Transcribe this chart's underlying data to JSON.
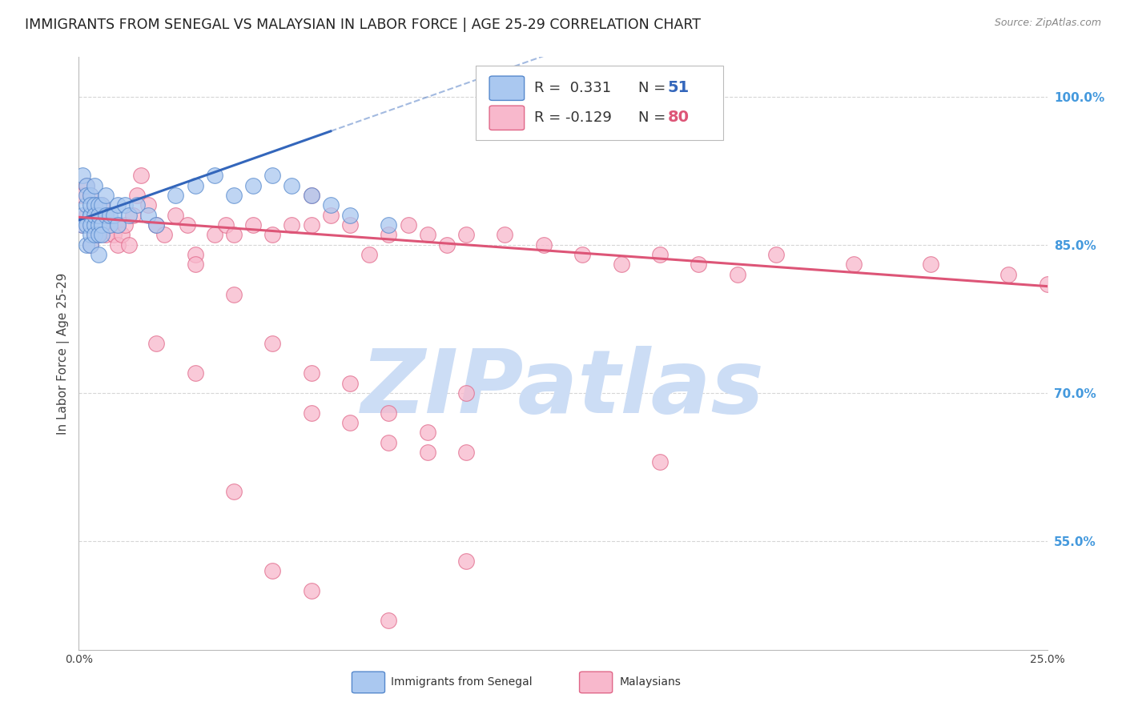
{
  "title": "IMMIGRANTS FROM SENEGAL VS MALAYSIAN IN LABOR FORCE | AGE 25-29 CORRELATION CHART",
  "source": "Source: ZipAtlas.com",
  "ylabel": "In Labor Force | Age 25-29",
  "xlim": [
    0.0,
    0.25
  ],
  "ylim": [
    0.44,
    1.04
  ],
  "xticks": [
    0.0,
    0.05,
    0.1,
    0.15,
    0.2,
    0.25
  ],
  "xticklabels": [
    "0.0%",
    "",
    "",
    "",
    "",
    "25.0%"
  ],
  "yticks_right": [
    1.0,
    0.85,
    0.7,
    0.55
  ],
  "ytick_labels_right": [
    "100.0%",
    "85.0%",
    "70.0%",
    "55.0%"
  ],
  "senegal_R": 0.331,
  "senegal_N": 51,
  "malaysian_R": -0.129,
  "malaysian_N": 80,
  "senegal_color": "#aac8f0",
  "senegal_edge_color": "#5588cc",
  "malaysian_color": "#f8b8cc",
  "malaysian_edge_color": "#e06688",
  "senegal_line_color": "#3366bb",
  "malaysian_line_color": "#dd5577",
  "background_color": "#ffffff",
  "grid_color": "#cccccc",
  "watermark": "ZIPatlas",
  "watermark_color": "#ccddf5",
  "right_tick_color": "#4499dd",
  "senegal_x": [
    0.001,
    0.001,
    0.001,
    0.002,
    0.002,
    0.002,
    0.002,
    0.002,
    0.003,
    0.003,
    0.003,
    0.003,
    0.003,
    0.003,
    0.003,
    0.004,
    0.004,
    0.004,
    0.004,
    0.004,
    0.005,
    0.005,
    0.005,
    0.005,
    0.005,
    0.006,
    0.006,
    0.006,
    0.007,
    0.007,
    0.008,
    0.008,
    0.009,
    0.01,
    0.01,
    0.012,
    0.013,
    0.015,
    0.018,
    0.02,
    0.025,
    0.03,
    0.035,
    0.04,
    0.045,
    0.05,
    0.055,
    0.06,
    0.065,
    0.07,
    0.08
  ],
  "senegal_y": [
    0.88,
    0.92,
    0.87,
    0.89,
    0.91,
    0.87,
    0.9,
    0.85,
    0.88,
    0.9,
    0.86,
    0.88,
    0.85,
    0.89,
    0.87,
    0.87,
    0.89,
    0.86,
    0.88,
    0.91,
    0.87,
    0.89,
    0.86,
    0.88,
    0.84,
    0.87,
    0.89,
    0.86,
    0.88,
    0.9,
    0.87,
    0.88,
    0.88,
    0.89,
    0.87,
    0.89,
    0.88,
    0.89,
    0.88,
    0.87,
    0.9,
    0.91,
    0.92,
    0.9,
    0.91,
    0.92,
    0.91,
    0.9,
    0.89,
    0.88,
    0.87
  ],
  "malaysian_x": [
    0.001,
    0.001,
    0.002,
    0.002,
    0.003,
    0.003,
    0.003,
    0.004,
    0.004,
    0.005,
    0.005,
    0.006,
    0.006,
    0.007,
    0.007,
    0.008,
    0.009,
    0.01,
    0.01,
    0.011,
    0.012,
    0.013,
    0.014,
    0.015,
    0.016,
    0.018,
    0.02,
    0.022,
    0.025,
    0.028,
    0.03,
    0.035,
    0.038,
    0.04,
    0.045,
    0.05,
    0.055,
    0.06,
    0.06,
    0.065,
    0.07,
    0.075,
    0.08,
    0.085,
    0.09,
    0.095,
    0.1,
    0.11,
    0.12,
    0.13,
    0.14,
    0.15,
    0.16,
    0.17,
    0.18,
    0.2,
    0.22,
    0.24,
    0.25,
    0.02,
    0.03,
    0.03,
    0.04,
    0.05,
    0.06,
    0.07,
    0.08,
    0.09,
    0.1,
    0.05,
    0.1,
    0.15,
    0.04,
    0.06,
    0.08,
    0.1,
    0.06,
    0.08,
    0.07,
    0.09
  ],
  "malaysian_y": [
    0.9,
    0.87,
    0.91,
    0.88,
    0.9,
    0.87,
    0.85,
    0.89,
    0.86,
    0.88,
    0.86,
    0.89,
    0.87,
    0.88,
    0.86,
    0.87,
    0.86,
    0.87,
    0.85,
    0.86,
    0.87,
    0.85,
    0.88,
    0.9,
    0.92,
    0.89,
    0.87,
    0.86,
    0.88,
    0.87,
    0.84,
    0.86,
    0.87,
    0.86,
    0.87,
    0.86,
    0.87,
    0.87,
    0.9,
    0.88,
    0.87,
    0.84,
    0.86,
    0.87,
    0.86,
    0.85,
    0.86,
    0.86,
    0.85,
    0.84,
    0.83,
    0.84,
    0.83,
    0.82,
    0.84,
    0.83,
    0.83,
    0.82,
    0.81,
    0.75,
    0.83,
    0.72,
    0.8,
    0.75,
    0.72,
    0.71,
    0.68,
    0.66,
    0.7,
    0.52,
    0.64,
    0.63,
    0.6,
    0.68,
    0.65,
    0.53,
    0.5,
    0.47,
    0.67,
    0.64
  ]
}
